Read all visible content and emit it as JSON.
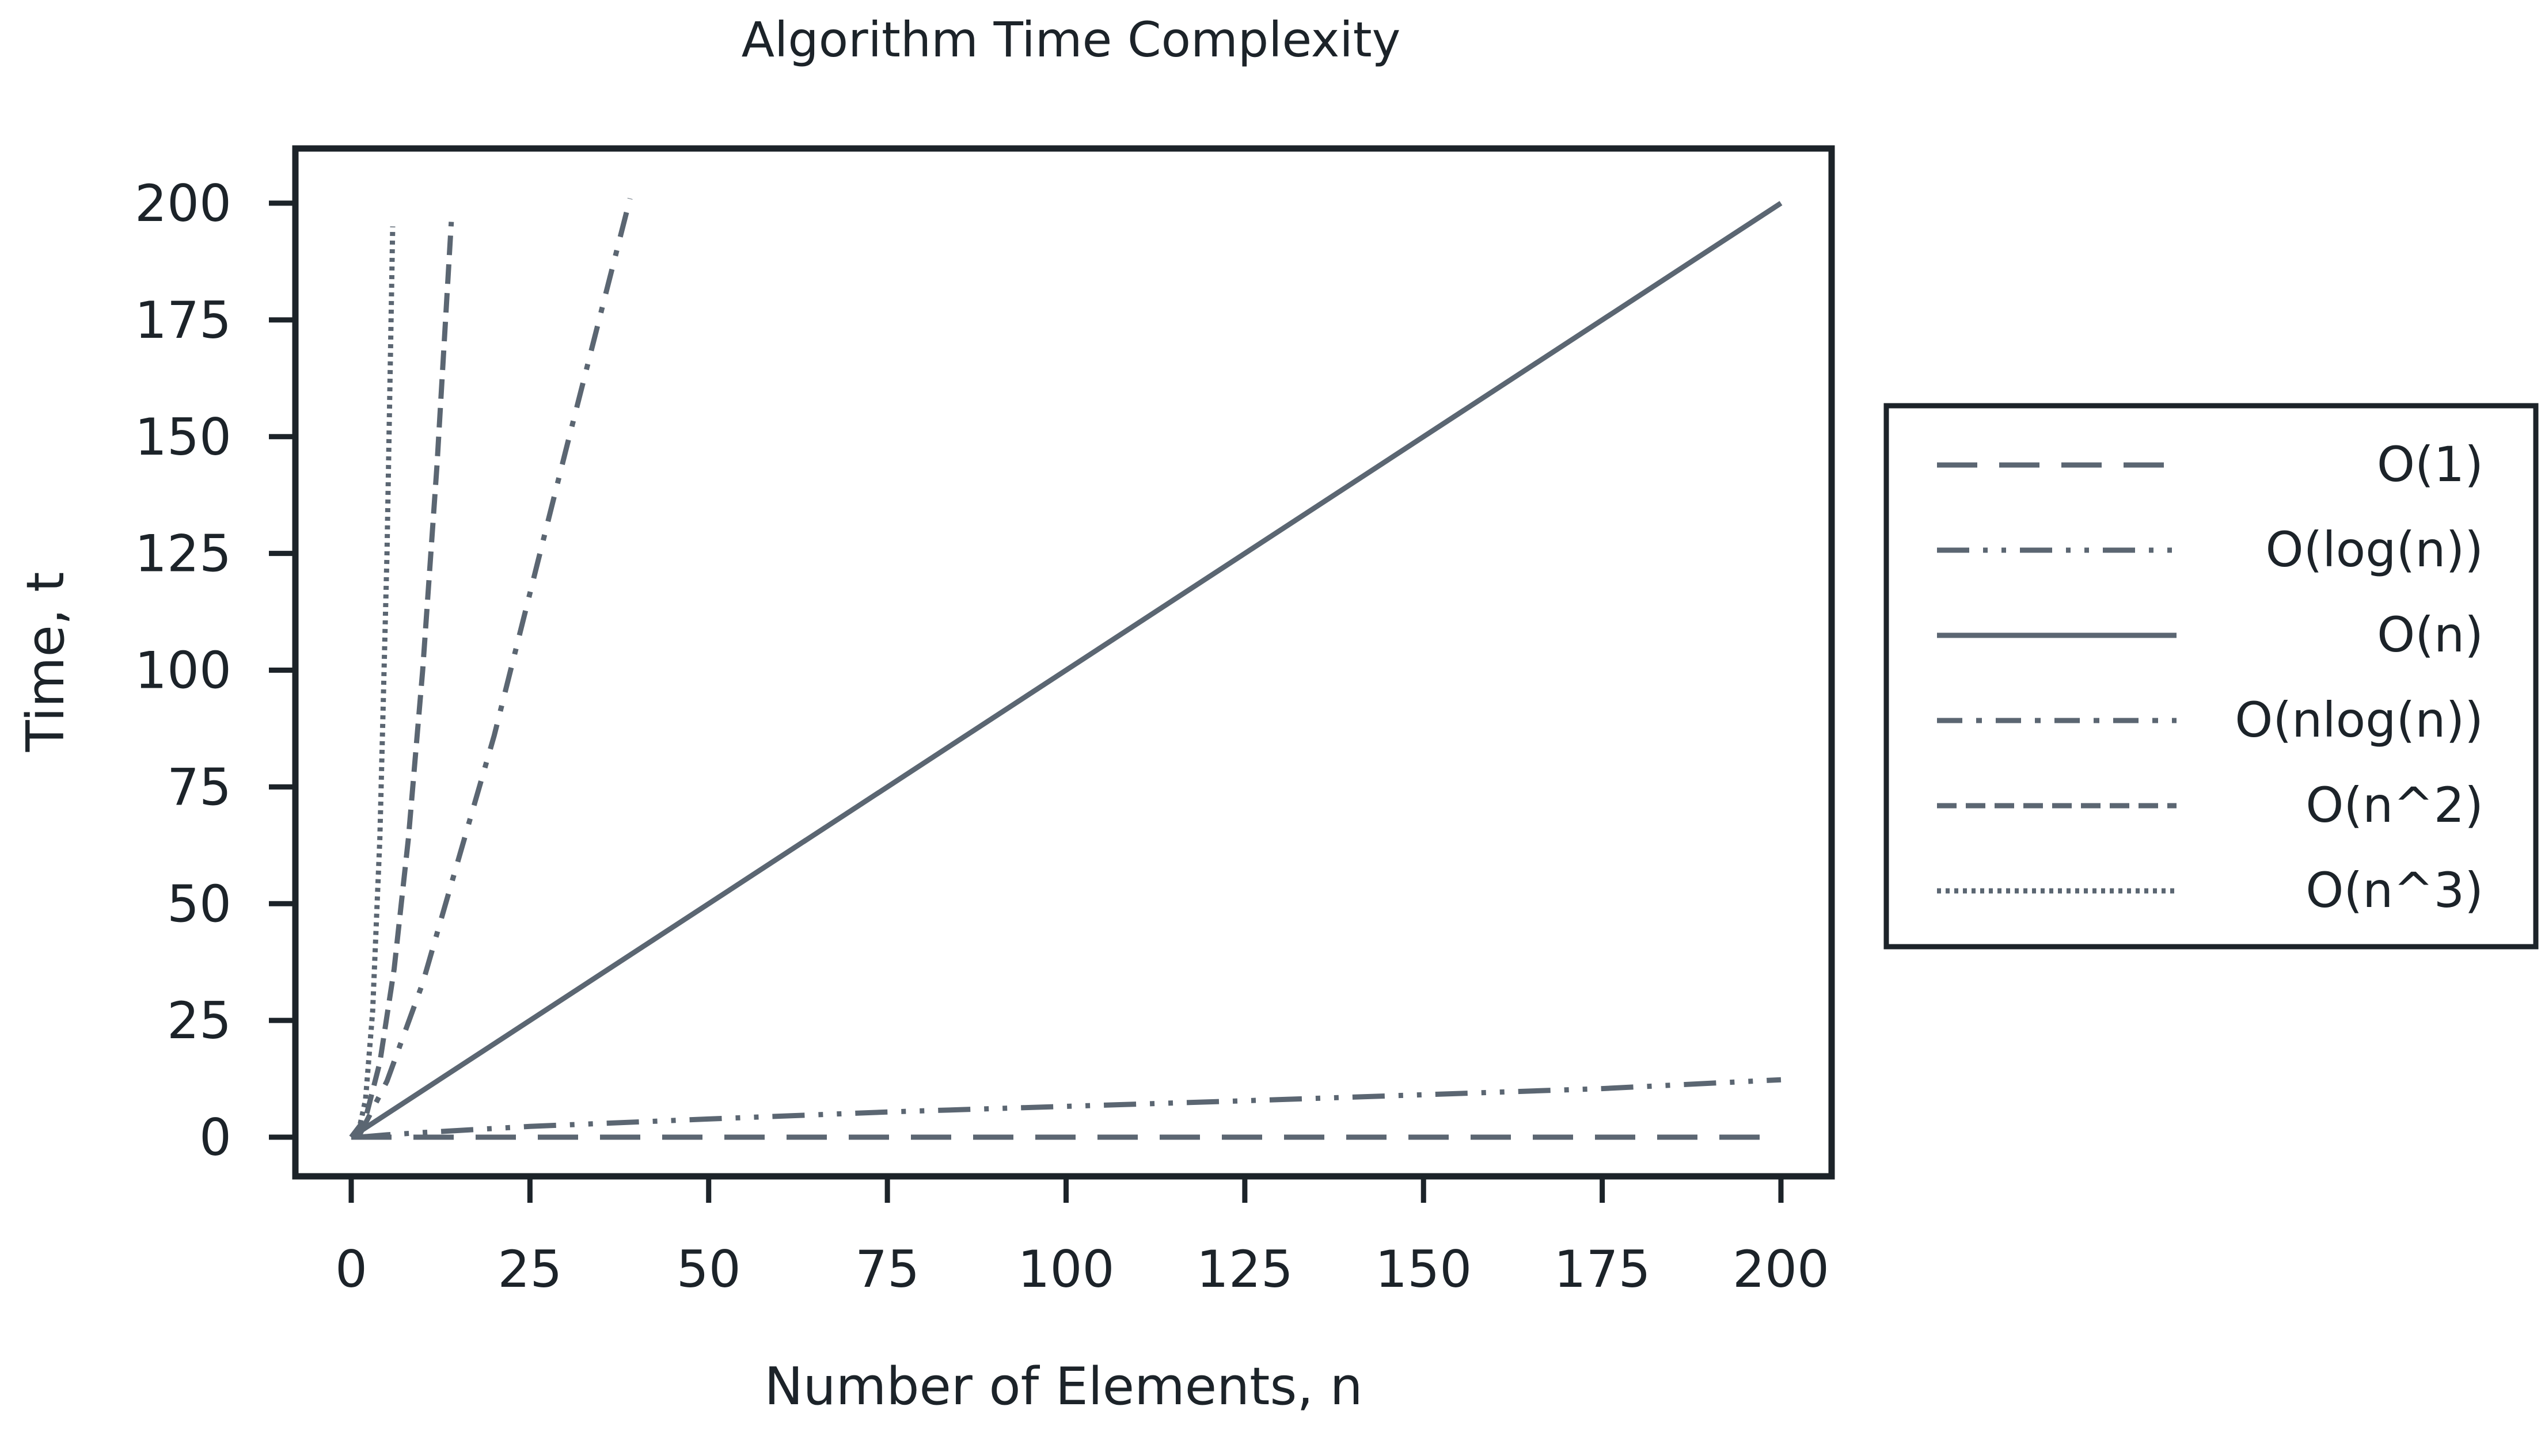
{
  "chart_data": {
    "type": "line",
    "title": "Algorithm Time Complexity",
    "xlabel": "Number of Elements, n",
    "ylabel": "Time, t",
    "xlim": [
      -8,
      207
    ],
    "ylim": [
      -8,
      212
    ],
    "xticks": [
      0,
      25,
      50,
      75,
      100,
      125,
      150,
      175,
      200
    ],
    "yticks": [
      0,
      25,
      50,
      75,
      100,
      125,
      150,
      175,
      200
    ],
    "grid": false,
    "legend_position": "right, outside plot",
    "line_color": "#5b6672",
    "series": [
      {
        "name": "O(1)",
        "style": "long-dash",
        "x": [
          0,
          200
        ],
        "y": [
          0,
          0
        ]
      },
      {
        "name": "O(log(n))",
        "style": "dash-dot-dot",
        "x": [
          1,
          5,
          10,
          25,
          50,
          75,
          100,
          125,
          150,
          175,
          200
        ],
        "y": [
          0,
          0.5,
          1,
          2.3,
          3.9,
          5.4,
          6.6,
          7.8,
          9.1,
          10.4,
          12.3
        ]
      },
      {
        "name": "O(n)",
        "style": "solid",
        "x": [
          0,
          200
        ],
        "y": [
          0,
          200
        ]
      },
      {
        "name": "O(nlog(n))",
        "style": "dash-dot",
        "x": [
          1,
          5,
          10,
          20,
          30,
          39
        ],
        "y": [
          0,
          12,
          33,
          86,
          147,
          201
        ]
      },
      {
        "name": "O(n^2)",
        "style": "short-dash",
        "x": [
          0,
          2,
          4,
          6,
          8,
          10,
          12,
          14
        ],
        "y": [
          0,
          4,
          16,
          36,
          64,
          100,
          144,
          196
        ]
      },
      {
        "name": "O(n^3)",
        "style": "dotted",
        "x": [
          0,
          1,
          2,
          3,
          4,
          5,
          5.8
        ],
        "y": [
          0,
          1,
          8,
          27,
          64,
          125,
          195
        ]
      }
    ]
  }
}
